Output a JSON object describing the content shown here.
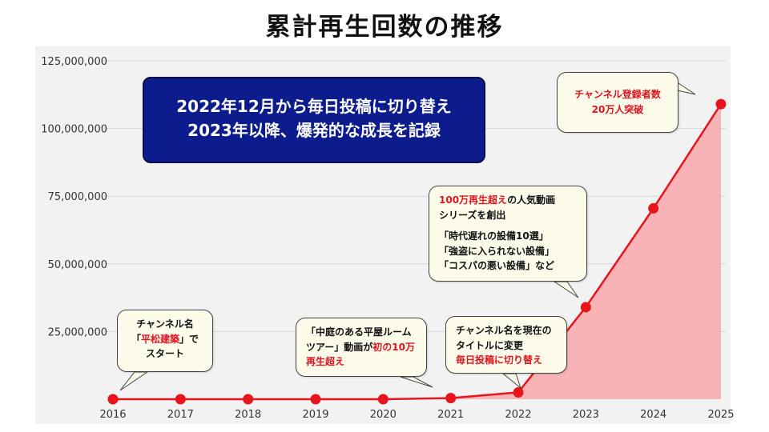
{
  "title": "累計再生回数の推移",
  "headline": {
    "line1": "2022年12月から毎日投稿に切り替え",
    "line2": "2023年以降、爆発的な成長を記録"
  },
  "callouts": {
    "start": {
      "line1": "チャンネル名",
      "line2_a": "「",
      "line2_red": "平松建築",
      "line2_b": "」で",
      "line3": "スタート"
    },
    "tour": {
      "line1": "「中庭のある平屋ルーム",
      "line2_a": "ツアー」動画が",
      "line2_red": "初の10万",
      "line3_red": "再生超え"
    },
    "rename": {
      "line1": "チャンネル名を現在の",
      "line2": "タイトルに変更",
      "line3_red": "毎日投稿に切り替え"
    },
    "series": {
      "line1_red": "100万再生超え",
      "line1_b": "の人気動画",
      "line2": "シリーズを創出",
      "line3": "「時代遅れの設備10選」",
      "line4": "「強盗に入られない設備」",
      "line5": "「コスパの悪い設備」など"
    },
    "subs": {
      "line1": "チャンネル登録者数",
      "line2": "20万人突破"
    }
  },
  "chart_data": {
    "type": "area",
    "x": [
      "2016",
      "2017",
      "2018",
      "2019",
      "2020",
      "2021",
      "2022",
      "2023",
      "2024",
      "2025"
    ],
    "values": [
      0,
      0,
      0,
      0,
      0,
      400000,
      2500000,
      34000000,
      70500000,
      109000000
    ],
    "ylim": [
      0,
      125000000
    ],
    "yticks": [
      0,
      25000000,
      50000000,
      75000000,
      100000000,
      125000000
    ],
    "ytick_labels": [
      "",
      "25,000,000",
      "50,000,000",
      "75,000,000",
      "100,000,000",
      "125,000,000"
    ],
    "grid": true,
    "colors": {
      "line": "#e8141c",
      "fill": "#f8a8ac",
      "grid": "#d6d6d6"
    }
  }
}
